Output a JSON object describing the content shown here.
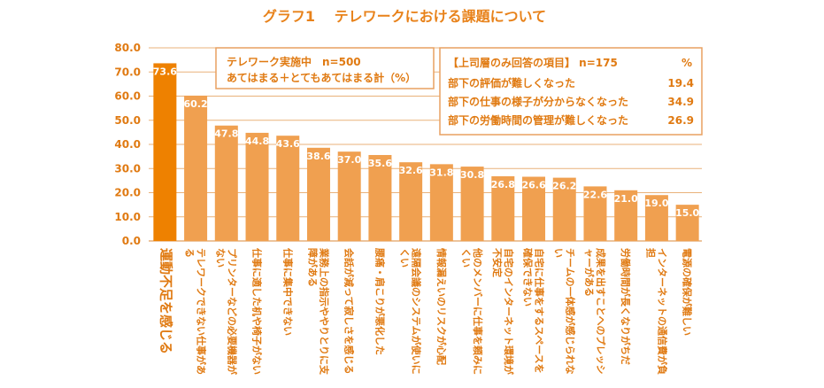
{
  "chart_data": {
    "type": "bar",
    "title": "グラフ1　 テレワークにおける課題について",
    "categories": [
      "運動不足を感じる",
      "テレワークできない仕事がある",
      "プリンターなどの必要機器がない",
      "仕事に適した机や椅子がない",
      "仕事に集中できない",
      "業務上の指示ややりとりに支障がある",
      "会話が減って寂しさを感じる",
      "腰痛・肩こりが悪化した",
      "遠隔会議のシステムが使いにくい",
      "情報漏えいのリスクが心配",
      "他のメンバーに仕事を頼みにくい",
      "自宅のインターネット環境が不安定",
      "自宅に仕事をするスペースを確保できない",
      "チームの一体感が感じられない",
      "成果を出すことへのプレッシャーがある",
      "労働時間が長くなりがちだ",
      "インターネットの通信費が負担",
      "電源の確保が難しい"
    ],
    "values": [
      73.6,
      60.2,
      47.8,
      44.8,
      43.6,
      38.6,
      37.0,
      35.6,
      32.6,
      31.8,
      30.8,
      26.8,
      26.6,
      26.2,
      22.6,
      21.0,
      19.0,
      15.0
    ],
    "value_labels": [
      "73.6",
      "60.2",
      "47.8",
      "44.8",
      "43.6",
      "38.6",
      "37.0",
      "35.6",
      "32.6",
      "31.8",
      "30.8",
      "26.8",
      "26.6",
      "26.2",
      "22.6",
      "21.0",
      "19.0",
      "15.0"
    ],
    "highlight_index": 0,
    "ylim": [
      0,
      80
    ],
    "yticks": [
      "0.0",
      "10.0",
      "20.0",
      "30.0",
      "40.0",
      "50.0",
      "60.0",
      "70.0",
      "80.0"
    ],
    "grid": true,
    "colors": {
      "bar": "#f0a050",
      "highlight": "#ee8100",
      "text": "#e07a12",
      "grid": "#e9b27a"
    }
  },
  "note_box": {
    "line1": "テレワーク実施中　n=500",
    "line2": "あてはまる＋とてもあてはまる計（%）"
  },
  "supervisor_box": {
    "header": "【上司層のみ回答の項目】 n=175",
    "unit": "%",
    "items": [
      {
        "label": "部下の評価が難しくなった",
        "value": "19.4"
      },
      {
        "label": "部下の仕事の様子が分からなくなった",
        "value": "34.9"
      },
      {
        "label": "部下の労働時間の管理が難しくなった",
        "value": "26.9"
      }
    ]
  }
}
